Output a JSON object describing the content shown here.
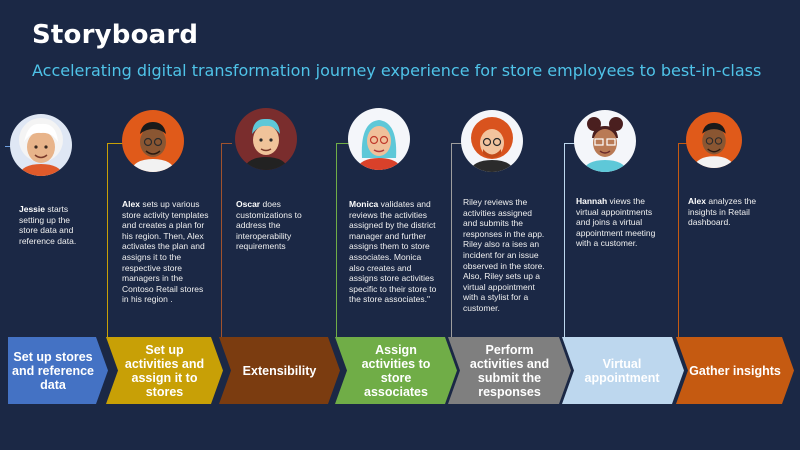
{
  "header": {
    "title": "Storyboard",
    "subtitle": "Accelerating digital transformation journey experience for store employees to best-in-class"
  },
  "colors": {
    "background": "#1b2845",
    "subtitle": "#4fc3e8",
    "stage1": "#4472c4",
    "stage2": "#c8a006",
    "stage3": "#7b3c10",
    "stage4": "#70ad47",
    "stage5": "#7f7f7f",
    "stage6": "#bdd7ee",
    "stage7": "#c55a11"
  },
  "personas": [
    {
      "name": "Jessie",
      "text": "starts setting up the store data and reference data."
    },
    {
      "name": "Alex",
      "text": "sets up various store activity templates and creates a plan for his region. Then, Alex activates the plan and assigns it to the respective store managers in the Contoso Retail stores in his region ."
    },
    {
      "name": "Oscar",
      "text": "does customizations to address the interoperability requirements"
    },
    {
      "name": "Monica",
      "text": "validates and reviews the activities assigned by the district manager and further assigns them to store associates. Monica also creates and assigns store activities specific to their store to the store associates.\""
    },
    {
      "name": "",
      "text": "Riley reviews the activities assigned and submits the responses in the app. Riley also ra ises an incident for an issue observed in the store. Also, Riley sets up a virtual appointment with a stylist for a customer."
    },
    {
      "name": "Hannah",
      "text": "views the virtual appointments and joins a virtual appointment meeting with a customer."
    },
    {
      "name": "Alex",
      "text": "analyzes the insights in Retail dashboard."
    }
  ],
  "stages": [
    {
      "label": "Set up stores and reference data"
    },
    {
      "label": "Set up activities and assign it to stores"
    },
    {
      "label": "Extensibility"
    },
    {
      "label": "Assign activities to store associates"
    },
    {
      "label": "Perform activities and submit the responses"
    },
    {
      "label": "Virtual appointment"
    },
    {
      "label": "Gather insights"
    }
  ]
}
